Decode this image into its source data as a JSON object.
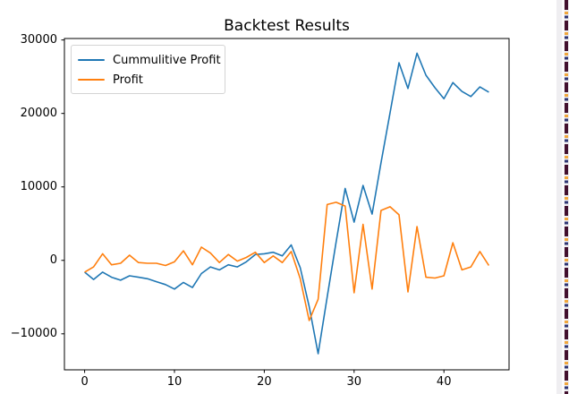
{
  "chart_data": {
    "type": "line",
    "title": "Backtest Results",
    "x": [
      0,
      1,
      2,
      3,
      4,
      5,
      6,
      7,
      8,
      9,
      10,
      11,
      12,
      13,
      14,
      15,
      16,
      17,
      18,
      19,
      20,
      21,
      22,
      23,
      24,
      25,
      26,
      27,
      28,
      29,
      30,
      31,
      32,
      33,
      34,
      35,
      36,
      37,
      38,
      39,
      40,
      41,
      42,
      43,
      44,
      45
    ],
    "series": [
      {
        "name": "Cummulitive Profit",
        "color": "#1f77b4",
        "values": [
          -1600,
          -2600,
          -1600,
          -2300,
          -2700,
          -2100,
          -2300,
          -2500,
          -2900,
          -3300,
          -3900,
          -3000,
          -3700,
          -1800,
          -900,
          -1300,
          -600,
          -900,
          -200,
          800,
          900,
          1100,
          600,
          2100,
          -1000,
          -6300,
          -12700,
          -5000,
          2500,
          9800,
          5200,
          10200,
          6300,
          13300,
          20100,
          26900,
          23400,
          28200,
          25200,
          23500,
          22000,
          24200,
          23000,
          22300,
          23600,
          22900
        ]
      },
      {
        "name": "Profit",
        "color": "#ff7f0e",
        "values": [
          -1600,
          -900,
          900,
          -600,
          -400,
          700,
          -300,
          -400,
          -400,
          -700,
          -200,
          1300,
          -600,
          1800,
          1000,
          -300,
          800,
          -100,
          400,
          1100,
          -300,
          600,
          -300,
          1200,
          -2500,
          -8200,
          -5300,
          7600,
          7900,
          7400,
          -4400,
          4900,
          -3900,
          6800,
          7300,
          6200,
          -4300,
          4600,
          -2300,
          -2400,
          -2100,
          2400,
          -1300,
          -900,
          1200,
          -700
        ]
      }
    ],
    "xlim": [
      -2.25,
      47.25
    ],
    "ylim": [
      -14900,
      30200
    ],
    "x_ticks": [
      0,
      10,
      20,
      30,
      40
    ],
    "x_tick_labels": [
      "0",
      "10",
      "20",
      "30",
      "40"
    ],
    "y_ticks": [
      30000,
      20000,
      10000,
      0,
      -10000
    ],
    "y_tick_labels": [
      "30000",
      "20000",
      "10000",
      "0",
      "−10000"
    ],
    "grid": false,
    "legend_position": "upper left",
    "xlabel": "",
    "ylabel": ""
  },
  "edge_strip": {
    "bg_color": "#efeef1",
    "inner_color": "#fbfbfc",
    "dash_maroon": "#42102e",
    "dash_orange": "#f0a73d",
    "dash_navy": "#2e3573"
  }
}
